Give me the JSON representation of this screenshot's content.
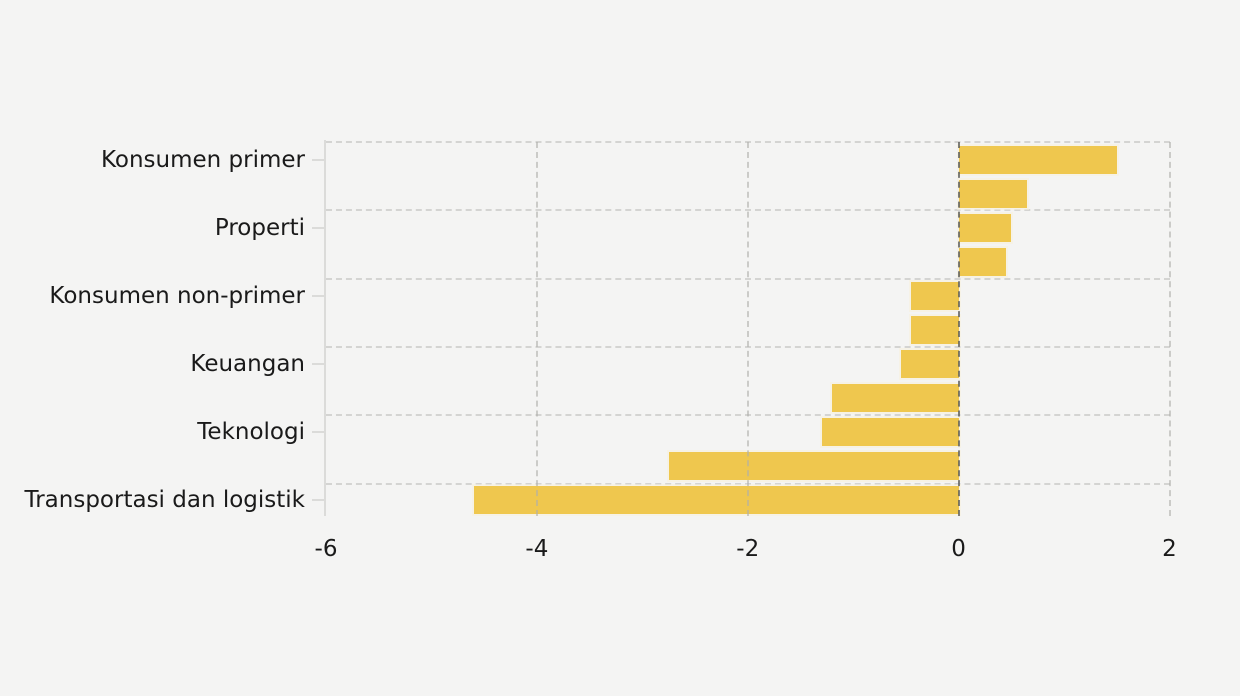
{
  "chart_data": {
    "type": "bar",
    "orientation": "horizontal",
    "title": "",
    "xlabel": "",
    "ylabel": "",
    "categories": [
      "Konsumen primer",
      "",
      "Properti",
      "",
      "Konsumen non-primer",
      "",
      "Keuangan",
      "",
      "Teknologi",
      "",
      "Transportasi dan logistik"
    ],
    "values": [
      1.5,
      0.65,
      0.5,
      0.45,
      -0.45,
      -0.45,
      -0.55,
      -1.2,
      -1.3,
      -2.75,
      -4.6
    ],
    "xlim": [
      -6,
      2
    ],
    "xticks": [
      -6,
      -4,
      -2,
      0,
      2
    ],
    "grid": "dashed",
    "legend": "none",
    "colors": {
      "bar": "#EFC74E",
      "background": "#F4F4F3",
      "gridline": "#C9C9C7",
      "zero_line": "#7F7F7C",
      "axis_line": "#DBDBD9",
      "text": "#1A1A1A"
    }
  }
}
